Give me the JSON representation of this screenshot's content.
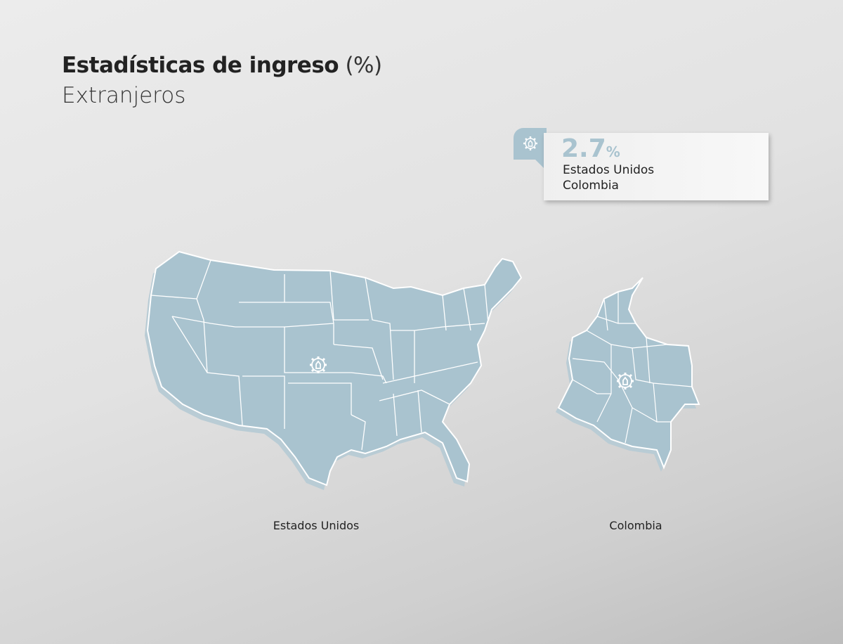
{
  "header": {
    "title": "Estadísticas de ingreso",
    "title_unit": "(%)",
    "subtitle": "Extranjeros"
  },
  "card": {
    "icon": "industry-gear-icon",
    "value": "2.7",
    "unit": "%",
    "line1": "Estados Unidos",
    "line2": "Colombia"
  },
  "maps": [
    {
      "label": "Estados Unidos",
      "icon": "industry-gear-icon"
    },
    {
      "label": "Colombia",
      "icon": "industry-gear-icon"
    }
  ],
  "colors": {
    "map_fill": "#a9c3cf",
    "map_border": "#ffffff",
    "accent": "#a9c3cf"
  }
}
